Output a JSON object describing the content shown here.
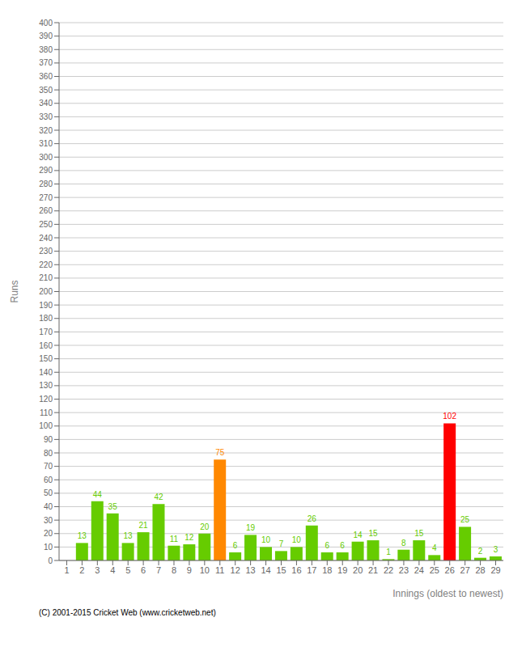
{
  "chart_data": {
    "type": "bar",
    "xlabel": "Innings  (oldest to newest)",
    "ylabel": "Runs",
    "annotations": [
      "(C) 2001-2015 Cricket Web (www.cricketweb.net)"
    ],
    "categories": [
      1,
      2,
      3,
      4,
      5,
      6,
      7,
      8,
      9,
      10,
      11,
      12,
      13,
      14,
      15,
      16,
      17,
      18,
      19,
      20,
      21,
      22,
      23,
      24,
      25,
      26,
      27,
      28,
      29
    ],
    "values": [
      0,
      13,
      44,
      35,
      13,
      21,
      42,
      11,
      12,
      20,
      75,
      6,
      19,
      10,
      7,
      10,
      26,
      6,
      6,
      14,
      15,
      1,
      8,
      15,
      4,
      102,
      25,
      2,
      3
    ],
    "colors": [
      "#66cc00",
      "#66cc00",
      "#66cc00",
      "#66cc00",
      "#66cc00",
      "#66cc00",
      "#66cc00",
      "#66cc00",
      "#66cc00",
      "#66cc00",
      "#ff8800",
      "#66cc00",
      "#66cc00",
      "#66cc00",
      "#66cc00",
      "#66cc00",
      "#66cc00",
      "#66cc00",
      "#66cc00",
      "#66cc00",
      "#66cc00",
      "#66cc00",
      "#66cc00",
      "#66cc00",
      "#66cc00",
      "#ff0000",
      "#66cc00",
      "#66cc00",
      "#66cc00"
    ],
    "ylim": [
      0,
      400
    ],
    "yticks": [
      0,
      10,
      20,
      30,
      40,
      50,
      60,
      70,
      80,
      90,
      100,
      110,
      120,
      130,
      140,
      150,
      160,
      170,
      180,
      190,
      200,
      210,
      220,
      230,
      240,
      250,
      260,
      270,
      280,
      290,
      300,
      310,
      320,
      330,
      340,
      350,
      360,
      370,
      380,
      390,
      400
    ],
    "grid": true,
    "data_labels": true
  }
}
